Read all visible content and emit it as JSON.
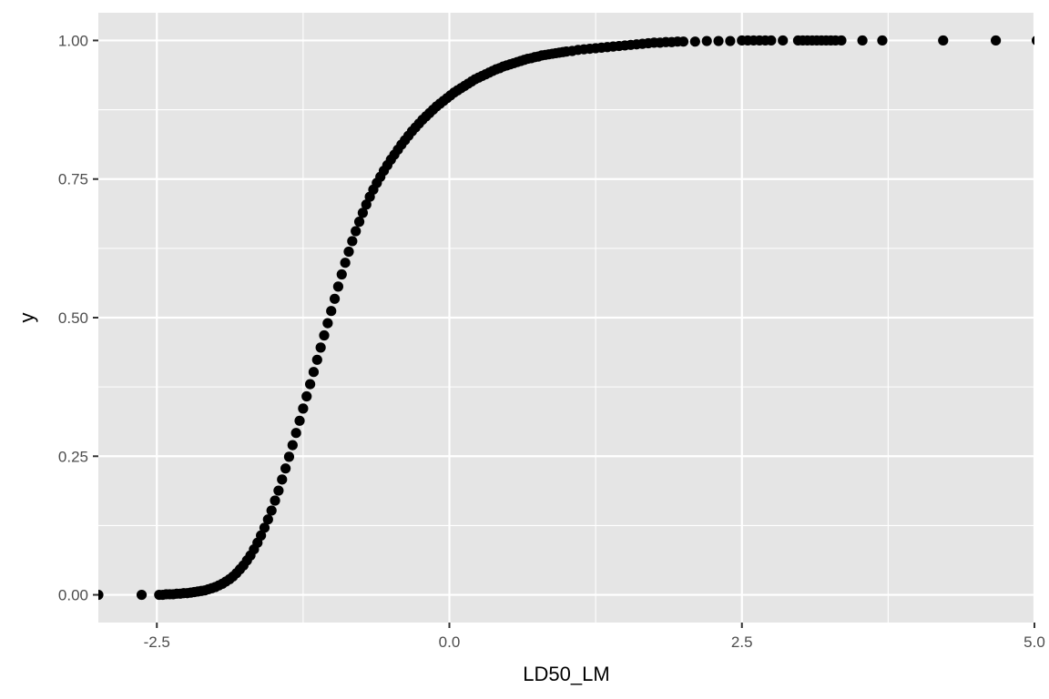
{
  "chart_data": {
    "type": "scatter",
    "title": "",
    "xlabel": "LD50_LM",
    "ylabel": "y",
    "xlim": [
      -3.0,
      5.0
    ],
    "ylim": [
      -0.05,
      1.05
    ],
    "x_ticks": [
      {
        "value": -2.5,
        "label": "-2.5"
      },
      {
        "value": 0.0,
        "label": "0.0"
      },
      {
        "value": 2.5,
        "label": "2.5"
      },
      {
        "value": 5.0,
        "label": "5.0"
      }
    ],
    "y_ticks": [
      {
        "value": 0.0,
        "label": "0.00"
      },
      {
        "value": 0.25,
        "label": "0.25"
      },
      {
        "value": 0.5,
        "label": "0.50"
      },
      {
        "value": 0.75,
        "label": "0.75"
      },
      {
        "value": 1.0,
        "label": "1.00"
      }
    ],
    "grid": true,
    "legend": "none",
    "point_color": "#000000",
    "panel_background": "#e5e5e5",
    "grid_color": "#ffffff",
    "series": [
      {
        "values": [
          [
            -3.0,
            0.0
          ],
          [
            -2.63,
            0.0
          ],
          [
            -2.48,
            0.0
          ],
          [
            -2.45,
            0.0
          ],
          [
            -2.42,
            0.001
          ],
          [
            -2.39,
            0.001
          ],
          [
            -2.36,
            0.001
          ],
          [
            -2.33,
            0.002
          ],
          [
            -2.3,
            0.002
          ],
          [
            -2.27,
            0.003
          ],
          [
            -2.24,
            0.003
          ],
          [
            -2.21,
            0.004
          ],
          [
            -2.18,
            0.005
          ],
          [
            -2.15,
            0.006
          ],
          [
            -2.12,
            0.007
          ],
          [
            -2.09,
            0.008
          ],
          [
            -2.06,
            0.01
          ],
          [
            -2.03,
            0.012
          ],
          [
            -2.0,
            0.014
          ],
          [
            -1.97,
            0.017
          ],
          [
            -1.94,
            0.02
          ],
          [
            -1.91,
            0.024
          ],
          [
            -1.88,
            0.028
          ],
          [
            -1.85,
            0.033
          ],
          [
            -1.82,
            0.039
          ],
          [
            -1.79,
            0.046
          ],
          [
            -1.76,
            0.053
          ],
          [
            -1.73,
            0.062
          ],
          [
            -1.7,
            0.071
          ],
          [
            -1.67,
            0.082
          ],
          [
            -1.64,
            0.094
          ],
          [
            -1.61,
            0.107
          ],
          [
            -1.58,
            0.121
          ],
          [
            -1.55,
            0.136
          ],
          [
            -1.52,
            0.152
          ],
          [
            -1.49,
            0.17
          ],
          [
            -1.46,
            0.188
          ],
          [
            -1.43,
            0.208
          ],
          [
            -1.4,
            0.228
          ],
          [
            -1.37,
            0.249
          ],
          [
            -1.34,
            0.27
          ],
          [
            -1.31,
            0.292
          ],
          [
            -1.28,
            0.314
          ],
          [
            -1.25,
            0.336
          ],
          [
            -1.22,
            0.358
          ],
          [
            -1.19,
            0.38
          ],
          [
            -1.16,
            0.402
          ],
          [
            -1.13,
            0.424
          ],
          [
            -1.1,
            0.446
          ],
          [
            -1.07,
            0.468
          ],
          [
            -1.04,
            0.49
          ],
          [
            -1.01,
            0.512
          ],
          [
            -0.98,
            0.534
          ],
          [
            -0.95,
            0.556
          ],
          [
            -0.92,
            0.578
          ],
          [
            -0.89,
            0.599
          ],
          [
            -0.86,
            0.619
          ],
          [
            -0.83,
            0.638
          ],
          [
            -0.8,
            0.656
          ],
          [
            -0.77,
            0.673
          ],
          [
            -0.74,
            0.689
          ],
          [
            -0.71,
            0.704
          ],
          [
            -0.68,
            0.718
          ],
          [
            -0.65,
            0.731
          ],
          [
            -0.62,
            0.743
          ],
          [
            -0.59,
            0.754
          ],
          [
            -0.56,
            0.765
          ],
          [
            -0.53,
            0.775
          ],
          [
            -0.5,
            0.785
          ],
          [
            -0.47,
            0.794
          ],
          [
            -0.44,
            0.803
          ],
          [
            -0.41,
            0.812
          ],
          [
            -0.38,
            0.82
          ],
          [
            -0.35,
            0.828
          ],
          [
            -0.32,
            0.836
          ],
          [
            -0.29,
            0.843
          ],
          [
            -0.26,
            0.85
          ],
          [
            -0.23,
            0.857
          ],
          [
            -0.2,
            0.863
          ],
          [
            -0.17,
            0.869
          ],
          [
            -0.14,
            0.875
          ],
          [
            -0.11,
            0.881
          ],
          [
            -0.08,
            0.886
          ],
          [
            -0.05,
            0.891
          ],
          [
            -0.02,
            0.896
          ],
          [
            0.01,
            0.901
          ],
          [
            0.04,
            0.906
          ],
          [
            0.07,
            0.91
          ],
          [
            0.1,
            0.914
          ],
          [
            0.13,
            0.918
          ],
          [
            0.16,
            0.922
          ],
          [
            0.19,
            0.926
          ],
          [
            0.22,
            0.93
          ],
          [
            0.25,
            0.933
          ],
          [
            0.28,
            0.936
          ],
          [
            0.31,
            0.939
          ],
          [
            0.34,
            0.942
          ],
          [
            0.37,
            0.945
          ],
          [
            0.4,
            0.948
          ],
          [
            0.43,
            0.95
          ],
          [
            0.46,
            0.953
          ],
          [
            0.49,
            0.955
          ],
          [
            0.52,
            0.957
          ],
          [
            0.55,
            0.959
          ],
          [
            0.58,
            0.961
          ],
          [
            0.61,
            0.963
          ],
          [
            0.64,
            0.965
          ],
          [
            0.67,
            0.967
          ],
          [
            0.7,
            0.968
          ],
          [
            0.73,
            0.97
          ],
          [
            0.76,
            0.971
          ],
          [
            0.79,
            0.973
          ],
          [
            0.82,
            0.974
          ],
          [
            0.85,
            0.975
          ],
          [
            0.88,
            0.976
          ],
          [
            0.91,
            0.977
          ],
          [
            0.94,
            0.978
          ],
          [
            0.97,
            0.979
          ],
          [
            1.0,
            0.98
          ],
          [
            1.05,
            0.981
          ],
          [
            1.1,
            0.983
          ],
          [
            1.15,
            0.984
          ],
          [
            1.2,
            0.985
          ],
          [
            1.25,
            0.986
          ],
          [
            1.3,
            0.987
          ],
          [
            1.35,
            0.988
          ],
          [
            1.4,
            0.989
          ],
          [
            1.45,
            0.99
          ],
          [
            1.5,
            0.991
          ],
          [
            1.55,
            0.992
          ],
          [
            1.6,
            0.993
          ],
          [
            1.65,
            0.994
          ],
          [
            1.7,
            0.995
          ],
          [
            1.75,
            0.996
          ],
          [
            1.8,
            0.996
          ],
          [
            1.85,
            0.997
          ],
          [
            1.9,
            0.997
          ],
          [
            1.95,
            0.998
          ],
          [
            2.0,
            0.998
          ],
          [
            2.1,
            0.998
          ],
          [
            2.2,
            0.999
          ],
          [
            2.3,
            0.999
          ],
          [
            2.4,
            0.999
          ],
          [
            2.5,
            1.0
          ],
          [
            2.55,
            1.0
          ],
          [
            2.6,
            1.0
          ],
          [
            2.65,
            1.0
          ],
          [
            2.7,
            1.0
          ],
          [
            2.75,
            1.0
          ],
          [
            2.85,
            1.0
          ],
          [
            2.98,
            1.0
          ],
          [
            3.02,
            1.0
          ],
          [
            3.06,
            1.0
          ],
          [
            3.1,
            1.0
          ],
          [
            3.14,
            1.0
          ],
          [
            3.18,
            1.0
          ],
          [
            3.22,
            1.0
          ],
          [
            3.26,
            1.0
          ],
          [
            3.3,
            1.0
          ],
          [
            3.35,
            1.0
          ],
          [
            3.53,
            1.0
          ],
          [
            3.7,
            1.0
          ],
          [
            4.22,
            1.0
          ],
          [
            4.67,
            1.0
          ],
          [
            5.02,
            1.0
          ]
        ]
      }
    ]
  }
}
